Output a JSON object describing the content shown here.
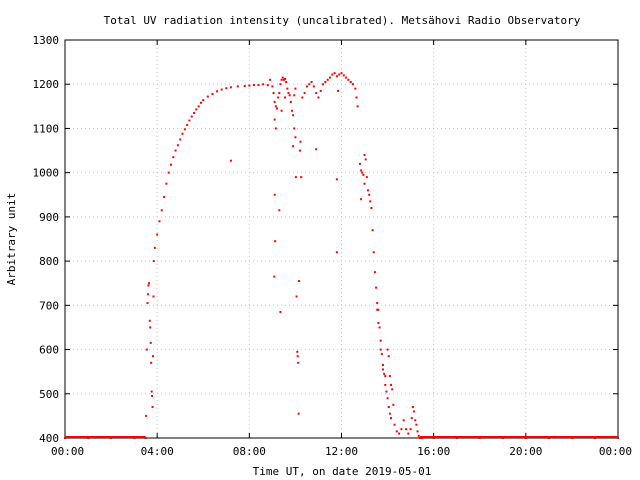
{
  "chart_data": {
    "type": "scatter",
    "title": "Total UV radiation intensity (uncalibrated). Metsähovi Radio Observatory",
    "xlabel": "Time UT, on date 2019-05-01",
    "ylabel": "Arbitrary unit",
    "x_unit": "hours UT",
    "xlim": [
      0,
      24
    ],
    "ylim": [
      400,
      1300
    ],
    "x_ticks": [
      {
        "value": 0,
        "label": "00:00"
      },
      {
        "value": 4,
        "label": "04:00"
      },
      {
        "value": 8,
        "label": "08:00"
      },
      {
        "value": 12,
        "label": "12:00"
      },
      {
        "value": 16,
        "label": "16:00"
      },
      {
        "value": 20,
        "label": "20:00"
      },
      {
        "value": 24,
        "label": "00:00"
      }
    ],
    "y_ticks": [
      400,
      500,
      600,
      700,
      800,
      900,
      1000,
      1100,
      1200,
      1300
    ],
    "grid": true,
    "legend": "none",
    "marker_color": "#ff0000",
    "series": [
      {
        "points": [
          [
            0.0,
            400
          ],
          [
            1.0,
            400
          ],
          [
            2.0,
            400
          ],
          [
            3.0,
            400
          ],
          [
            3.5,
            400
          ],
          [
            3.52,
            450
          ],
          [
            3.55,
            600
          ],
          [
            3.58,
            705
          ],
          [
            3.6,
            725
          ],
          [
            3.62,
            745
          ],
          [
            3.65,
            750
          ],
          [
            3.68,
            665
          ],
          [
            3.7,
            650
          ],
          [
            3.72,
            615
          ],
          [
            3.74,
            570
          ],
          [
            3.76,
            505
          ],
          [
            3.78,
            495
          ],
          [
            3.8,
            470
          ],
          [
            3.82,
            585
          ],
          [
            3.84,
            720
          ],
          [
            3.85,
            800
          ],
          [
            3.9,
            830
          ],
          [
            4.0,
            860
          ],
          [
            4.1,
            890
          ],
          [
            4.2,
            915
          ],
          [
            4.3,
            945
          ],
          [
            4.4,
            975
          ],
          [
            4.5,
            1000
          ],
          [
            4.6,
            1018
          ],
          [
            4.7,
            1035
          ],
          [
            4.8,
            1050
          ],
          [
            4.9,
            1062
          ],
          [
            5.0,
            1075
          ],
          [
            5.1,
            1088
          ],
          [
            5.2,
            1098
          ],
          [
            5.3,
            1108
          ],
          [
            5.4,
            1118
          ],
          [
            5.5,
            1127
          ],
          [
            5.6,
            1135
          ],
          [
            5.7,
            1143
          ],
          [
            5.8,
            1150
          ],
          [
            5.9,
            1158
          ],
          [
            6.0,
            1164
          ],
          [
            6.2,
            1172
          ],
          [
            6.4,
            1178
          ],
          [
            6.6,
            1184
          ],
          [
            6.8,
            1188
          ],
          [
            7.0,
            1191
          ],
          [
            7.2,
            1193
          ],
          [
            7.5,
            1195
          ],
          [
            7.2,
            1027
          ],
          [
            7.8,
            1196
          ],
          [
            8.0,
            1197
          ],
          [
            8.2,
            1198
          ],
          [
            8.4,
            1198
          ],
          [
            8.6,
            1200
          ],
          [
            8.8,
            1198
          ],
          [
            8.9,
            1210
          ],
          [
            9.0,
            1195
          ],
          [
            9.05,
            1180
          ],
          [
            9.1,
            1160
          ],
          [
            9.15,
            1150
          ],
          [
            9.2,
            1145
          ],
          [
            9.25,
            1170
          ],
          [
            9.3,
            1180
          ],
          [
            9.35,
            1200
          ],
          [
            9.4,
            1210
          ],
          [
            9.45,
            1215
          ],
          [
            9.5,
            1210
          ],
          [
            9.55,
            1212
          ],
          [
            9.6,
            1205
          ],
          [
            9.65,
            1190
          ],
          [
            9.7,
            1180
          ],
          [
            9.75,
            1175
          ],
          [
            9.1,
            1120
          ],
          [
            9.15,
            1100
          ],
          [
            9.1,
            950
          ],
          [
            9.12,
            845
          ],
          [
            9.08,
            765
          ],
          [
            9.3,
            915
          ],
          [
            9.35,
            685
          ],
          [
            9.4,
            1140
          ],
          [
            9.55,
            1170
          ],
          [
            9.8,
            1160
          ],
          [
            9.85,
            1140
          ],
          [
            9.9,
            1130
          ],
          [
            9.95,
            1100
          ],
          [
            10.0,
            1080
          ],
          [
            10.02,
            990
          ],
          [
            10.05,
            720
          ],
          [
            10.08,
            595
          ],
          [
            10.1,
            585
          ],
          [
            10.12,
            570
          ],
          [
            10.14,
            455
          ],
          [
            10.16,
            755
          ],
          [
            10.2,
            1050
          ],
          [
            10.22,
            1070
          ],
          [
            10.25,
            990
          ],
          [
            9.9,
            1060
          ],
          [
            9.95,
            1175
          ],
          [
            10.0,
            1190
          ],
          [
            10.3,
            1170
          ],
          [
            10.4,
            1180
          ],
          [
            10.5,
            1195
          ],
          [
            10.6,
            1200
          ],
          [
            10.7,
            1205
          ],
          [
            10.8,
            1195
          ],
          [
            10.9,
            1180
          ],
          [
            11.0,
            1170
          ],
          [
            11.1,
            1185
          ],
          [
            11.2,
            1200
          ],
          [
            11.3,
            1205
          ],
          [
            11.4,
            1210
          ],
          [
            11.5,
            1215
          ],
          [
            11.6,
            1222
          ],
          [
            11.7,
            1225
          ],
          [
            11.8,
            1218
          ],
          [
            11.9,
            1222
          ],
          [
            12.0,
            1225
          ],
          [
            12.1,
            1220
          ],
          [
            12.2,
            1215
          ],
          [
            12.3,
            1210
          ],
          [
            12.4,
            1205
          ],
          [
            12.5,
            1200
          ],
          [
            12.6,
            1190
          ],
          [
            10.9,
            1053
          ],
          [
            11.8,
            985
          ],
          [
            11.8,
            820
          ],
          [
            11.85,
            1185
          ],
          [
            12.65,
            1170
          ],
          [
            12.7,
            1150
          ],
          [
            12.8,
            1020
          ],
          [
            12.85,
            1005
          ],
          [
            12.9,
            1000
          ],
          [
            12.95,
            995
          ],
          [
            13.0,
            1040
          ],
          [
            13.05,
            1030
          ],
          [
            13.1,
            990
          ],
          [
            13.15,
            960
          ],
          [
            13.2,
            950
          ],
          [
            13.25,
            935
          ],
          [
            12.85,
            940
          ],
          [
            13.0,
            975
          ],
          [
            13.3,
            920
          ],
          [
            13.35,
            870
          ],
          [
            13.4,
            820
          ],
          [
            13.45,
            775
          ],
          [
            13.5,
            740
          ],
          [
            13.55,
            705
          ],
          [
            13.6,
            690
          ],
          [
            13.65,
            650
          ],
          [
            13.7,
            620
          ],
          [
            13.75,
            590
          ],
          [
            13.8,
            565
          ],
          [
            13.85,
            545
          ],
          [
            13.9,
            520
          ],
          [
            13.95,
            505
          ],
          [
            14.0,
            490
          ],
          [
            14.05,
            470
          ],
          [
            14.1,
            455
          ],
          [
            14.15,
            445
          ],
          [
            13.55,
            690
          ],
          [
            13.6,
            660
          ],
          [
            13.7,
            600
          ],
          [
            13.8,
            555
          ],
          [
            13.9,
            540
          ],
          [
            14.0,
            600
          ],
          [
            14.05,
            585
          ],
          [
            14.1,
            540
          ],
          [
            14.15,
            520
          ],
          [
            14.2,
            510
          ],
          [
            14.25,
            475
          ],
          [
            14.3,
            430
          ],
          [
            14.4,
            415
          ],
          [
            14.5,
            410
          ],
          [
            14.6,
            420
          ],
          [
            14.7,
            440
          ],
          [
            14.8,
            420
          ],
          [
            14.9,
            410
          ],
          [
            15.0,
            420
          ],
          [
            15.05,
            445
          ],
          [
            15.1,
            470
          ],
          [
            15.15,
            460
          ],
          [
            15.2,
            440
          ],
          [
            15.25,
            430
          ],
          [
            15.3,
            415
          ],
          [
            15.35,
            405
          ],
          [
            15.4,
            400
          ],
          [
            15.5,
            400
          ],
          [
            16.0,
            400
          ],
          [
            17.0,
            400
          ],
          [
            18.0,
            400
          ],
          [
            19.0,
            400
          ],
          [
            20.0,
            400
          ],
          [
            21.0,
            400
          ],
          [
            22.0,
            400
          ],
          [
            23.0,
            400
          ],
          [
            24.0,
            400
          ]
        ]
      }
    ]
  }
}
